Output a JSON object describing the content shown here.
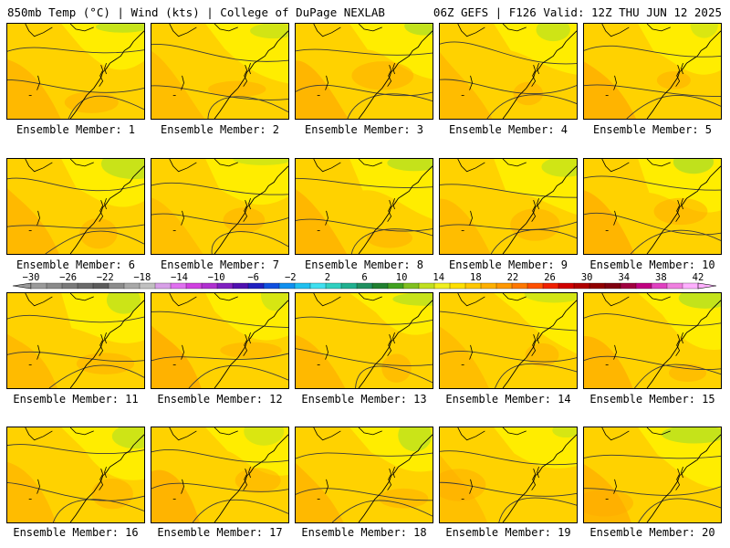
{
  "header": {
    "left": "850mb Temp (°C) | Wind (kts) | College of DuPage NEXLAB",
    "right": "06Z GEFS | F126 Valid: 12Z THU JUN 12 2025"
  },
  "caption_prefix": "Ensemble Member:",
  "members": [
    1,
    2,
    3,
    4,
    5,
    6,
    7,
    8,
    9,
    10,
    11,
    12,
    13,
    14,
    15,
    16,
    17,
    18,
    19,
    20
  ],
  "colorbar": {
    "labels": [
      "-30",
      "-26",
      "-22",
      "-18",
      "-14",
      "-10",
      "-6",
      "-2",
      "2",
      "6",
      "10",
      "14",
      "18",
      "22",
      "26",
      "30",
      "34",
      "38",
      "42"
    ],
    "colors": [
      "#9a9a9a",
      "#8a8a8a",
      "#7a7a7a",
      "#6a6a6a",
      "#5c5c5c",
      "#8c8c8c",
      "#a8a8a8",
      "#c0c0c0",
      "#d8a0e8",
      "#e070f0",
      "#d040e0",
      "#b030d0",
      "#8020c0",
      "#5010b0",
      "#2020c0",
      "#1050e0",
      "#1090f0",
      "#20c0f0",
      "#40e0f0",
      "#30d0c0",
      "#20b090",
      "#209060",
      "#208030",
      "#40a020",
      "#80c020",
      "#c0e020",
      "#f0f020",
      "#ffe000",
      "#ffc800",
      "#ffb000",
      "#ff9800",
      "#ff7800",
      "#ff5000",
      "#f02000",
      "#d00000",
      "#b00000",
      "#900000",
      "#800010",
      "#a00040",
      "#c00080",
      "#e040c0",
      "#f080e0",
      "#ffb0ff"
    ]
  },
  "colors": {
    "base_warm": "#ffd200",
    "light": "#fff000",
    "orange": "#ffaa00",
    "green": "#b8e020",
    "contour": "#3a3a3a",
    "coast": "#000000"
  }
}
